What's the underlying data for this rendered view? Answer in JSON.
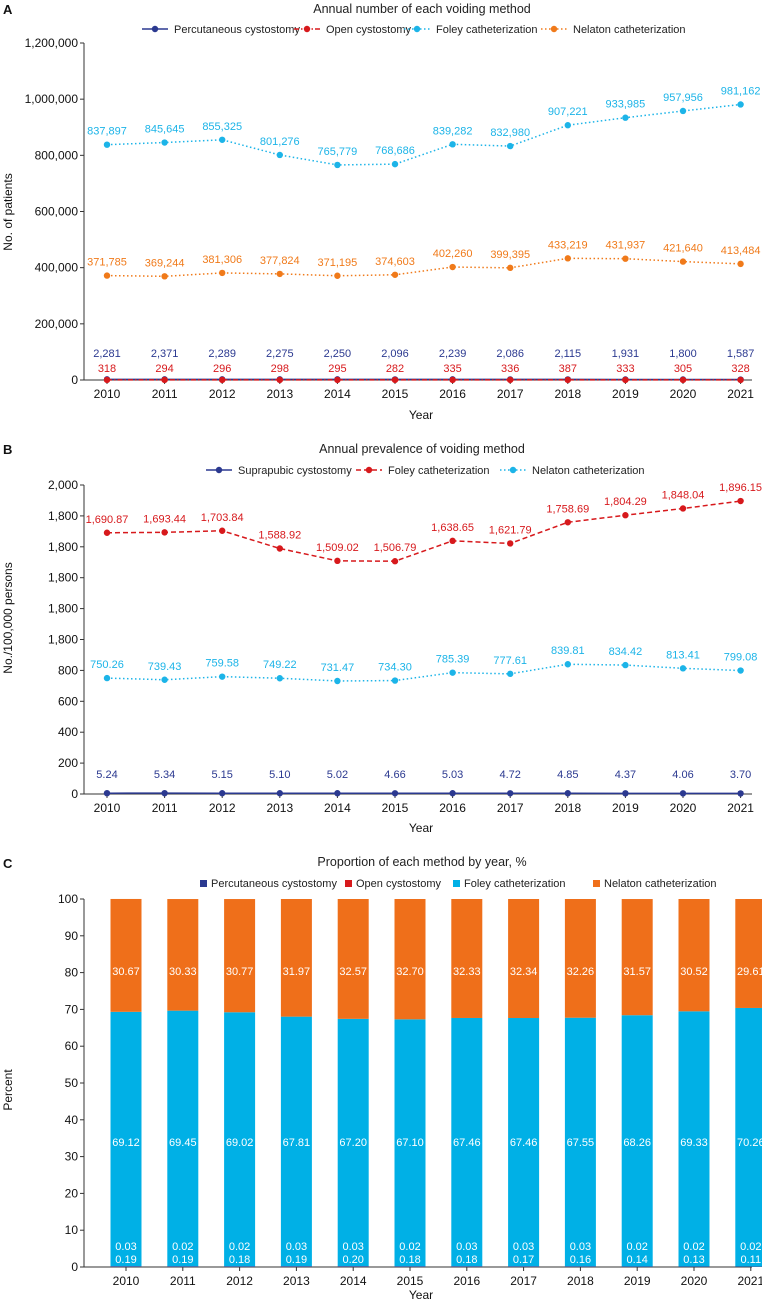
{
  "colors": {
    "navy": "#2b3990",
    "red": "#d7191c",
    "cyan": "#1cb4e8",
    "orange": "#f07a1a",
    "bar_cyan": "#00b0e6",
    "bar_orange": "#ef6f1a"
  },
  "chart_data": [
    {
      "panel": "A",
      "type": "line",
      "title": "Annual number of each voiding method",
      "xlabel": "Year",
      "ylabel": "No. of patients",
      "x": [
        "2010",
        "2011",
        "2012",
        "2013",
        "2014",
        "2015",
        "2016",
        "2017",
        "2018",
        "2019",
        "2020",
        "2021"
      ],
      "ylim": [
        0,
        1200000
      ],
      "yticks": [
        "0",
        "200,000",
        "400,000",
        "600,000",
        "800,000",
        "1,000,000",
        "1,200,000"
      ],
      "legend_position": "top",
      "series": [
        {
          "name": "Percutaneous cystostomy",
          "color": "#2b3990",
          "style": "solid",
          "values": [
            2281,
            2371,
            2289,
            2275,
            2250,
            2096,
            2239,
            2086,
            2115,
            1931,
            1800,
            1587
          ],
          "labels": [
            "2,281",
            "2,371",
            "2,289",
            "2,275",
            "2,250",
            "2,096",
            "2,239",
            "2,086",
            "2,115",
            "1,931",
            "1,800",
            "1,587"
          ]
        },
        {
          "name": "Open cystostomy",
          "color": "#d7191c",
          "style": "dashdot",
          "values": [
            318,
            294,
            296,
            298,
            295,
            282,
            335,
            336,
            387,
            333,
            305,
            328
          ],
          "labels": [
            "318",
            "294",
            "296",
            "298",
            "295",
            "282",
            "335",
            "336",
            "387",
            "333",
            "305",
            "328"
          ]
        },
        {
          "name": "Foley catheterization",
          "color": "#1cb4e8",
          "style": "dotted",
          "values": [
            837897,
            845645,
            855325,
            801276,
            765779,
            768686,
            839282,
            832980,
            907221,
            933985,
            957956,
            981162
          ],
          "labels": [
            "837,897",
            "845,645",
            "855,325",
            "801,276",
            "765,779",
            "768,686",
            "839,282",
            "832,980",
            "907,221",
            "933,985",
            "957,956",
            "981,162"
          ]
        },
        {
          "name": "Nelaton catheterization",
          "color": "#f07a1a",
          "style": "dotted",
          "values": [
            371785,
            369244,
            381306,
            377824,
            371195,
            374603,
            402260,
            399395,
            433219,
            431937,
            421640,
            413484
          ],
          "labels": [
            "371,785",
            "369,244",
            "381,306",
            "377,824",
            "371,195",
            "374,603",
            "402,260",
            "399,395",
            "433,219",
            "431,937",
            "421,640",
            "413,484"
          ]
        }
      ]
    },
    {
      "panel": "B",
      "type": "line",
      "title": "Annual prevalence of voiding method",
      "xlabel": "Year",
      "ylabel": "No./100,000 persons",
      "x": [
        "2010",
        "2011",
        "2012",
        "2013",
        "2014",
        "2015",
        "2016",
        "2017",
        "2018",
        "2019",
        "2020",
        "2021"
      ],
      "ylim": [
        0,
        2000
      ],
      "yticks": [
        "0",
        "200",
        "400",
        "600",
        "800",
        "1,800",
        "1,800",
        "1,800",
        "1,800",
        "1,800",
        "2,000"
      ],
      "legend_position": "top",
      "series": [
        {
          "name": "Suprapubic cystostomy",
          "color": "#2b3990",
          "style": "solid",
          "values": [
            5.24,
            5.34,
            5.15,
            5.1,
            5.02,
            4.66,
            5.03,
            4.72,
            4.85,
            4.37,
            4.06,
            3.7
          ],
          "labels": [
            "5.24",
            "5.34",
            "5.15",
            "5.10",
            "5.02",
            "4.66",
            "5.03",
            "4.72",
            "4.85",
            "4.37",
            "4.06",
            "3.70"
          ]
        },
        {
          "name": "Foley catheterization",
          "color": "#d7191c",
          "style": "dashed",
          "values": [
            1690.87,
            1693.44,
            1703.84,
            1588.92,
            1509.02,
            1506.79,
            1638.65,
            1621.79,
            1758.69,
            1804.29,
            1848.04,
            1896.15
          ],
          "labels": [
            "1,690.87",
            "1,693.44",
            "1,703.84",
            "1,588.92",
            "1,509.02",
            "1,506.79",
            "1,638.65",
            "1,621.79",
            "1,758.69",
            "1,804.29",
            "1,848.04",
            "1,896.15"
          ]
        },
        {
          "name": "Nelaton catheterization",
          "color": "#1cb4e8",
          "style": "dotted",
          "values": [
            750.26,
            739.43,
            759.58,
            749.22,
            731.47,
            734.3,
            785.39,
            777.61,
            839.81,
            834.42,
            813.41,
            799.08
          ],
          "labels": [
            "750.26",
            "739.43",
            "759.58",
            "749.22",
            "731.47",
            "734.30",
            "785.39",
            "777.61",
            "839.81",
            "834.42",
            "813.41",
            "799.08"
          ]
        }
      ]
    },
    {
      "panel": "C",
      "type": "bar",
      "stacked": true,
      "title": "Proportion of each method by year, %",
      "xlabel": "Year",
      "ylabel": "Percent",
      "categories": [
        "2010",
        "2011",
        "2012",
        "2013",
        "2014",
        "2015",
        "2016",
        "2017",
        "2018",
        "2019",
        "2020",
        "2021"
      ],
      "ylim": [
        0,
        100
      ],
      "yticks": [
        "0",
        "10",
        "20",
        "30",
        "40",
        "50",
        "60",
        "70",
        "80",
        "90",
        "100"
      ],
      "legend_position": "top",
      "series": [
        {
          "name": "Percutaneous cystostomy",
          "color": "#2b3990",
          "values": [
            0.19,
            0.19,
            0.18,
            0.19,
            0.2,
            0.18,
            0.18,
            0.17,
            0.16,
            0.14,
            0.13,
            0.11
          ],
          "labels": [
            "0.19",
            "0.19",
            "0.18",
            "0.19",
            "0.20",
            "0.18",
            "0.18",
            "0.17",
            "0.16",
            "0.14",
            "0.13",
            "0.11"
          ]
        },
        {
          "name": "Open cystostomy",
          "color": "#d7191c",
          "values": [
            0.03,
            0.02,
            0.02,
            0.03,
            0.03,
            0.02,
            0.03,
            0.03,
            0.03,
            0.02,
            0.02,
            0.02
          ],
          "labels": [
            "0.03",
            "0.02",
            "0.02",
            "0.03",
            "0.03",
            "0.02",
            "0.03",
            "0.03",
            "0.03",
            "0.02",
            "0.02",
            "0.02"
          ]
        },
        {
          "name": "Foley catheterization",
          "color": "#00b0e6",
          "values": [
            69.12,
            69.45,
            69.02,
            67.81,
            67.2,
            67.1,
            67.46,
            67.46,
            67.55,
            68.26,
            69.33,
            70.26
          ],
          "labels": [
            "69.12",
            "69.45",
            "69.02",
            "67.81",
            "67.20",
            "67.10",
            "67.46",
            "67.46",
            "67.55",
            "68.26",
            "69.33",
            "70.26"
          ]
        },
        {
          "name": "Nelaton catheterization",
          "color": "#ef6f1a",
          "values": [
            30.67,
            30.33,
            30.77,
            31.97,
            32.57,
            32.7,
            32.33,
            32.34,
            32.26,
            31.57,
            30.52,
            29.61
          ],
          "labels": [
            "30.67",
            "30.33",
            "30.77",
            "31.97",
            "32.57",
            "32.70",
            "32.33",
            "32.34",
            "32.26",
            "31.57",
            "30.52",
            "29.61"
          ]
        }
      ]
    }
  ]
}
